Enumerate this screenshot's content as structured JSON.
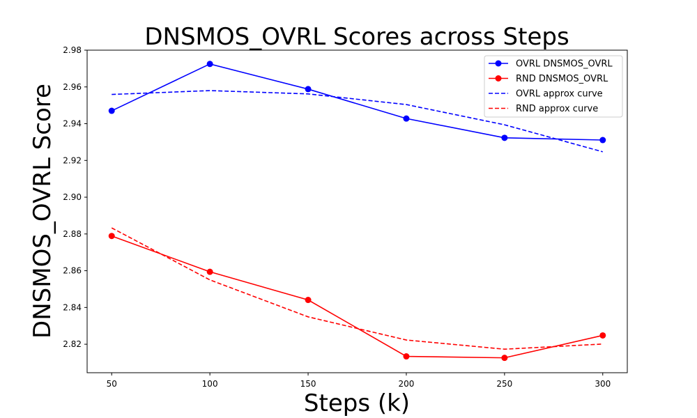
{
  "chart_data": {
    "type": "line",
    "title": "DNSMOS_OVRL Scores across Steps",
    "xlabel": "Steps (k)",
    "ylabel": "DNSMOS_OVRL Score",
    "x": [
      50,
      100,
      150,
      200,
      250,
      300
    ],
    "xticks": [
      "50",
      "100",
      "150",
      "200",
      "250",
      "300"
    ],
    "yticks": [
      "2.82",
      "2.84",
      "2.86",
      "2.88",
      "2.90",
      "2.92",
      "2.94",
      "2.96",
      "2.98"
    ],
    "xlim": [
      37.5,
      312.5
    ],
    "ylim": [
      2.8045,
      2.98
    ],
    "grid": false,
    "legend_position": "top-right",
    "series": [
      {
        "name": "OVRL DNSMOS_OVRL",
        "style": "solid",
        "marker": "circle",
        "color": "#0000ff",
        "values": [
          2.947,
          2.9725,
          2.9588,
          2.9428,
          2.9323,
          2.9311
        ]
      },
      {
        "name": "RND DNSMOS_OVRL",
        "style": "solid",
        "marker": "circle",
        "color": "#ff0000",
        "values": [
          2.8789,
          2.8594,
          2.8441,
          2.8134,
          2.8126,
          2.8248
        ]
      },
      {
        "name": "OVRL approx curve",
        "style": "dashed",
        "marker": "none",
        "color": "#0000ff",
        "values": [
          2.9559,
          2.958,
          2.9562,
          2.9504,
          2.9394,
          2.9247
        ]
      },
      {
        "name": "RND approx curve",
        "style": "dashed",
        "marker": "none",
        "color": "#ff0000",
        "values": [
          2.8833,
          2.855,
          2.8349,
          2.8223,
          2.8173,
          2.8201
        ]
      }
    ]
  }
}
